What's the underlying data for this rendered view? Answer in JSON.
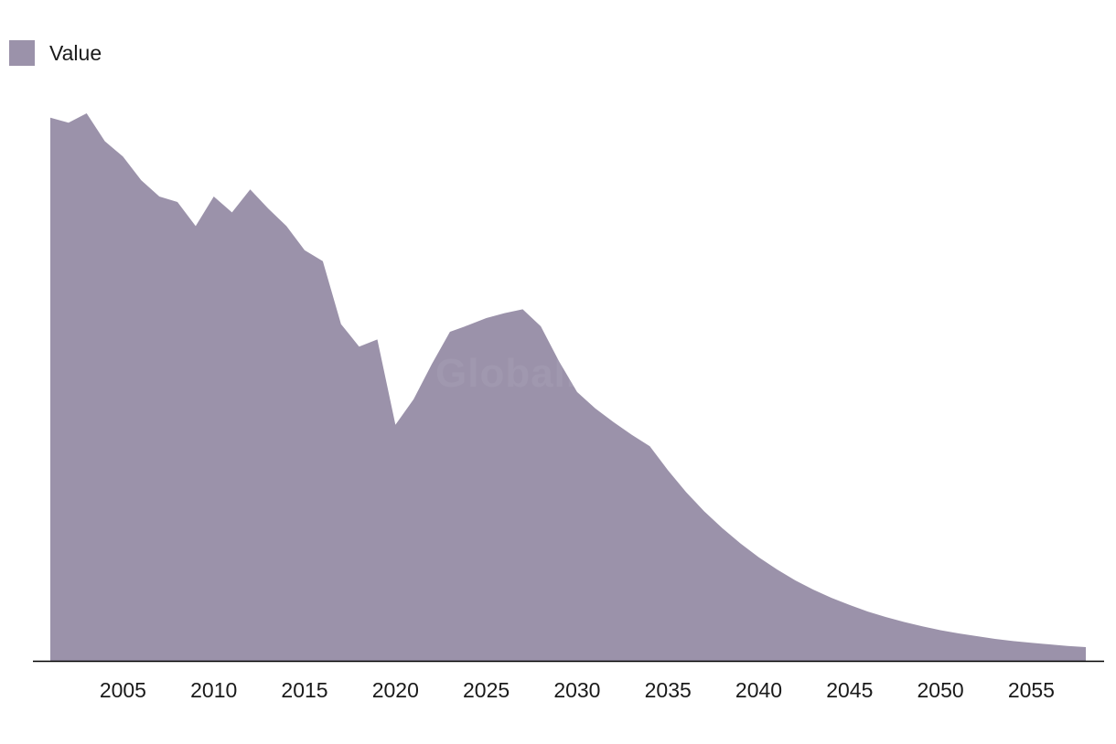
{
  "legend": {
    "label": "Value"
  },
  "watermark": "GlobalData",
  "colors": {
    "area": "#9b92aa",
    "axis": "#000000"
  },
  "chart_data": {
    "type": "area",
    "title": "",
    "xlabel": "",
    "ylabel": "",
    "grid": false,
    "legend_position": "top-left",
    "xlim": [
      2001,
      2058
    ],
    "ylim": [
      0,
      100
    ],
    "x_ticks": [
      2005,
      2010,
      2015,
      2020,
      2025,
      2030,
      2035,
      2040,
      2045,
      2050,
      2055
    ],
    "series": [
      {
        "name": "Value",
        "x": [
          2001,
          2002,
          2003,
          2004,
          2005,
          2006,
          2007,
          2008,
          2009,
          2010,
          2011,
          2012,
          2013,
          2014,
          2015,
          2016,
          2017,
          2018,
          2019,
          2020,
          2021,
          2022,
          2023,
          2024,
          2025,
          2026,
          2027,
          2028,
          2029,
          2030,
          2031,
          2032,
          2033,
          2034,
          2035,
          2036,
          2037,
          2038,
          2039,
          2040,
          2041,
          2042,
          2043,
          2044,
          2045,
          2046,
          2047,
          2048,
          2049,
          2050,
          2051,
          2052,
          2053,
          2054,
          2055,
          2056,
          2057,
          2058
        ],
        "values": [
          99.2,
          98.3,
          100.0,
          94.9,
          92.1,
          87.8,
          84.8,
          83.8,
          79.4,
          84.8,
          81.9,
          86.1,
          82.6,
          79.4,
          75.0,
          73.0,
          61.5,
          57.4,
          58.7,
          43.1,
          47.8,
          54.2,
          60.1,
          61.3,
          62.6,
          63.5,
          64.2,
          61.1,
          54.7,
          49.1,
          46.1,
          43.6,
          41.3,
          39.2,
          34.8,
          30.8,
          27.3,
          24.2,
          21.4,
          18.9,
          16.7,
          14.7,
          13.0,
          11.5,
          10.2,
          9.0,
          8.0,
          7.1,
          6.3,
          5.6,
          5.0,
          4.5,
          4.0,
          3.6,
          3.3,
          3.0,
          2.7,
          2.5
        ]
      }
    ]
  }
}
